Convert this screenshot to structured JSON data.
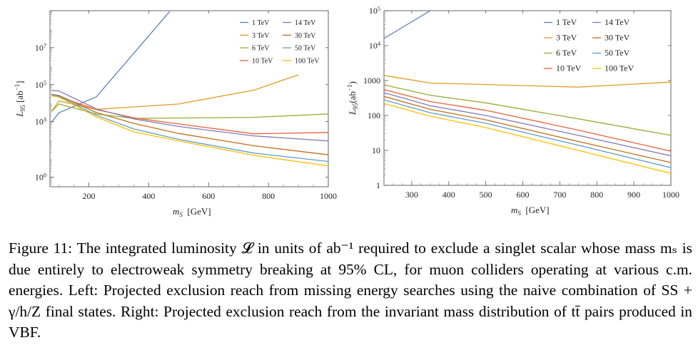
{
  "figure": {
    "caption_label": "Figure 11:",
    "caption_text": "The integrated luminosity 𝓛 in units of ab⁻¹ required to exclude a singlet scalar whose mass mₛ is due entirely to electroweak symmetry breaking at 95% CL, for muon colliders operating at various c.m. energies. Left: Projected exclusion reach from missing energy searches using the naive combination of SS + γ/h/Z final states. Right: Projected exclusion reach from the invariant mass distribution of tt̄ pairs produced in VBF."
  },
  "chart_data": [
    {
      "type": "line",
      "panel": "left",
      "xlabel": "m_S [GeV]",
      "ylabel": "L95 [ab^-1]",
      "xlim": [
        70,
        1000
      ],
      "ylim": [
        0.3,
        1000000000.0
      ],
      "yscale": "log",
      "x_ticks": [
        200,
        400,
        600,
        800,
        1000
      ],
      "y_ticks": [
        {
          "v": 1,
          "label": "10^0"
        },
        {
          "v": 1000,
          "label": "10^3"
        },
        {
          "v": 100000,
          "label": "10^5"
        },
        {
          "v": 10000000,
          "label": "10^7"
        }
      ],
      "legend_placement": "top-right",
      "series": [
        {
          "name": "1 TeV",
          "color": "#5e81b5",
          "x": [
            75,
            100,
            225,
            470
          ],
          "y": [
            900,
            3000,
            22000,
            900000000
          ]
        },
        {
          "name": "3 TeV",
          "color": "#e19c24",
          "x": [
            75,
            100,
            225,
            500,
            750,
            900
          ],
          "y": [
            3500,
            13000,
            4600,
            9000,
            50000,
            340000
          ]
        },
        {
          "name": "6 TeV",
          "color": "#8fb032",
          "x": [
            75,
            100,
            225,
            350,
            750,
            1000
          ],
          "y": [
            3500,
            9000,
            2600,
            1500,
            1700,
            2600
          ]
        },
        {
          "name": "10 TeV",
          "color": "#eb6235",
          "x": [
            75,
            100,
            225,
            350,
            500,
            750,
            1000
          ],
          "y": [
            25000,
            22000,
            4500,
            1600,
            750,
            220,
            260
          ]
        },
        {
          "name": "14 TeV",
          "color": "#8778b3",
          "x": [
            75,
            100,
            225,
            350,
            500,
            750,
            1000
          ],
          "y": [
            50000,
            45000,
            4900,
            1400,
            550,
            170,
            90
          ]
        },
        {
          "name": "30 TeV",
          "color": "#c56e1a",
          "x": [
            75,
            100,
            225,
            350,
            500,
            750,
            1000
          ],
          "y": [
            30000,
            26000,
            3100,
            800,
            230,
            50,
            16
          ]
        },
        {
          "name": "50 TeV",
          "color": "#5d9ec7",
          "x": [
            75,
            100,
            225,
            350,
            500,
            750,
            1000
          ],
          "y": [
            28000,
            24000,
            2200,
            400,
            110,
            20,
            7
          ]
        },
        {
          "name": "100 TeV",
          "color": "#ffbf00",
          "x": [
            75,
            100,
            225,
            350,
            500,
            750,
            1000
          ],
          "y": [
            25000,
            21000,
            1800,
            280,
            90,
            15,
            4
          ]
        }
      ]
    },
    {
      "type": "line",
      "panel": "right",
      "xlabel": "m_S [GeV]",
      "ylabel": "L95(ab^-1)",
      "xlim": [
        225,
        1000
      ],
      "ylim": [
        1,
        100000
      ],
      "yscale": "log",
      "x_ticks": [
        300,
        400,
        500,
        600,
        700,
        800,
        900,
        1000
      ],
      "y_ticks": [
        {
          "v": 1,
          "label": "1"
        },
        {
          "v": 10,
          "label": "10"
        },
        {
          "v": 100,
          "label": "100"
        },
        {
          "v": 1000,
          "label": "1000"
        },
        {
          "v": 10000,
          "label": "10^4"
        },
        {
          "v": 100000,
          "label": "10^5"
        }
      ],
      "legend_placement": "top-right",
      "series": [
        {
          "name": "1 TeV",
          "color": "#5e81b5",
          "x": [
            225,
            350
          ],
          "y": [
            16000,
            100000
          ]
        },
        {
          "name": "3 TeV",
          "color": "#e19c24",
          "x": [
            225,
            350,
            750,
            1000
          ],
          "y": [
            1400,
            850,
            650,
            900
          ]
        },
        {
          "name": "6 TeV",
          "color": "#8fb032",
          "x": [
            225,
            350,
            500,
            750,
            1000
          ],
          "y": [
            750,
            380,
            230,
            80,
            27
          ]
        },
        {
          "name": "10 TeV",
          "color": "#eb6235",
          "x": [
            225,
            350,
            500,
            750,
            1000
          ],
          "y": [
            550,
            250,
            140,
            38,
            9.5
          ]
        },
        {
          "name": "14 TeV",
          "color": "#8778b3",
          "x": [
            225,
            350,
            500,
            750,
            1000
          ],
          "y": [
            450,
            190,
            100,
            27,
            7
          ]
        },
        {
          "name": "30 TeV",
          "color": "#c56e1a",
          "x": [
            225,
            350,
            500,
            750,
            1000
          ],
          "y": [
            350,
            150,
            75,
            18,
            4.5
          ]
        },
        {
          "name": "50 TeV",
          "color": "#5d9ec7",
          "x": [
            225,
            350,
            500,
            750,
            1000
          ],
          "y": [
            280,
            120,
            60,
            14,
            3.2
          ]
        },
        {
          "name": "100 TeV",
          "color": "#ffbf00",
          "x": [
            225,
            350,
            500,
            750,
            1000
          ],
          "y": [
            220,
            95,
            45,
            10,
            2.2
          ]
        }
      ]
    }
  ]
}
